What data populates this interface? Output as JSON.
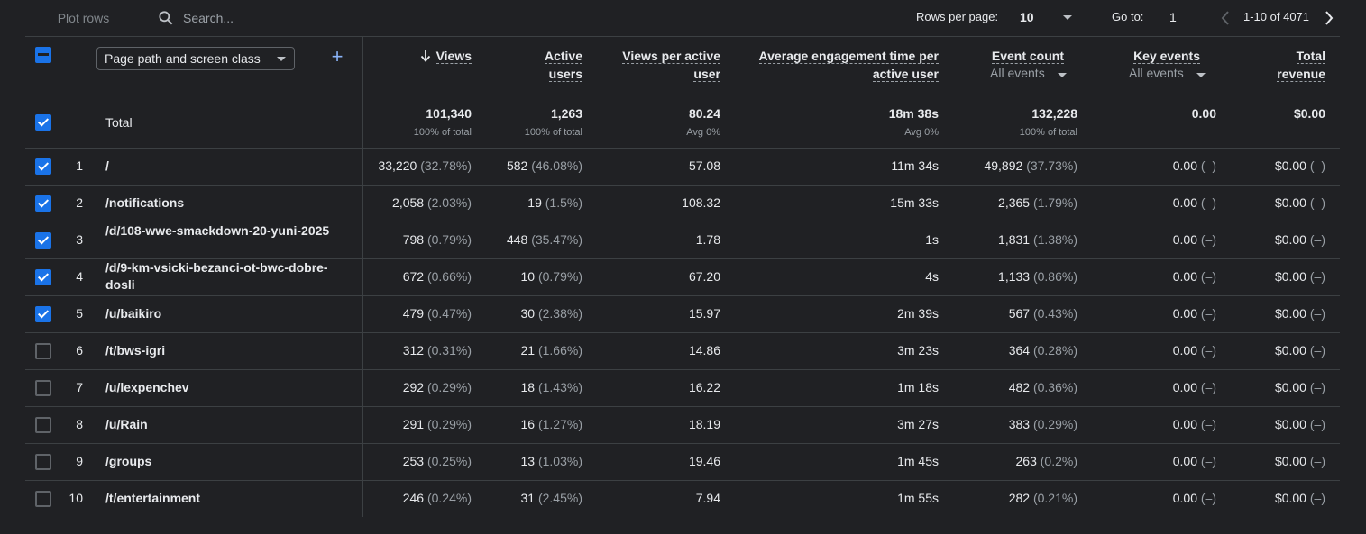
{
  "toolbar": {
    "plot_rows": "Plot rows",
    "search_placeholder": "Search...",
    "rows_per_page_label": "Rows per page:",
    "rows_per_page_value": "10",
    "goto_label": "Go to:",
    "goto_value": "1",
    "range": "1-10 of 4071"
  },
  "dimension": "Page path and screen class",
  "columns": {
    "views": "Views",
    "active_users_1": "Active",
    "active_users_2": "users",
    "vpu_1": "Views per active",
    "vpu_2": "user",
    "aet_1": "Average engagement time per",
    "aet_2": "active user",
    "events": "Event count",
    "events_sub": "All events",
    "key": "Key events",
    "key_sub": "All events",
    "rev_1": "Total",
    "rev_2": "revenue"
  },
  "totals": {
    "label": "Total",
    "views": "101,340",
    "views_sub": "100% of total",
    "users": "1,263",
    "users_sub": "100% of total",
    "vpu": "80.24",
    "vpu_sub": "Avg 0%",
    "aet": "18m 38s",
    "aet_sub": "Avg 0%",
    "events": "132,228",
    "events_sub": "100% of total",
    "key": "0.00",
    "rev": "$0.00"
  },
  "rows": [
    {
      "n": "1",
      "path": "/",
      "checked": true,
      "views": "33,220",
      "views_pct": "(32.78%)",
      "users": "582",
      "users_pct": "(46.08%)",
      "vpu": "57.08",
      "aet": "11m 34s",
      "events": "49,892",
      "events_pct": "(37.73%)",
      "key": "0.00",
      "key_pct": "(–)",
      "rev": "$0.00",
      "rev_pct": "(–)"
    },
    {
      "n": "2",
      "path": "/notifications",
      "checked": true,
      "views": "2,058",
      "views_pct": "(2.03%)",
      "users": "19",
      "users_pct": "(1.5%)",
      "vpu": "108.32",
      "aet": "15m 33s",
      "events": "2,365",
      "events_pct": "(1.79%)",
      "key": "0.00",
      "key_pct": "(–)",
      "rev": "$0.00",
      "rev_pct": "(–)"
    },
    {
      "n": "3",
      "path": "/d/108-wwe-smackdown-20-yuni-2025",
      "checked": true,
      "views": "798",
      "views_pct": "(0.79%)",
      "users": "448",
      "users_pct": "(35.47%)",
      "vpu": "1.78",
      "aet": "1s",
      "events": "1,831",
      "events_pct": "(1.38%)",
      "key": "0.00",
      "key_pct": "(–)",
      "rev": "$0.00",
      "rev_pct": "(–)"
    },
    {
      "n": "4",
      "path": "/d/9-km-vsicki-bezanci-ot-bwc-dobre-dosli",
      "checked": true,
      "views": "672",
      "views_pct": "(0.66%)",
      "users": "10",
      "users_pct": "(0.79%)",
      "vpu": "67.20",
      "aet": "4s",
      "events": "1,133",
      "events_pct": "(0.86%)",
      "key": "0.00",
      "key_pct": "(–)",
      "rev": "$0.00",
      "rev_pct": "(–)"
    },
    {
      "n": "5",
      "path": "/u/baikiro",
      "checked": true,
      "views": "479",
      "views_pct": "(0.47%)",
      "users": "30",
      "users_pct": "(2.38%)",
      "vpu": "15.97",
      "aet": "2m 39s",
      "events": "567",
      "events_pct": "(0.43%)",
      "key": "0.00",
      "key_pct": "(–)",
      "rev": "$0.00",
      "rev_pct": "(–)"
    },
    {
      "n": "6",
      "path": "/t/bws-igri",
      "checked": false,
      "views": "312",
      "views_pct": "(0.31%)",
      "users": "21",
      "users_pct": "(1.66%)",
      "vpu": "14.86",
      "aet": "3m 23s",
      "events": "364",
      "events_pct": "(0.28%)",
      "key": "0.00",
      "key_pct": "(–)",
      "rev": "$0.00",
      "rev_pct": "(–)"
    },
    {
      "n": "7",
      "path": "/u/lexpenchev",
      "checked": false,
      "views": "292",
      "views_pct": "(0.29%)",
      "users": "18",
      "users_pct": "(1.43%)",
      "vpu": "16.22",
      "aet": "1m 18s",
      "events": "482",
      "events_pct": "(0.36%)",
      "key": "0.00",
      "key_pct": "(–)",
      "rev": "$0.00",
      "rev_pct": "(–)"
    },
    {
      "n": "8",
      "path": "/u/Rain",
      "checked": false,
      "views": "291",
      "views_pct": "(0.29%)",
      "users": "16",
      "users_pct": "(1.27%)",
      "vpu": "18.19",
      "aet": "3m 27s",
      "events": "383",
      "events_pct": "(0.29%)",
      "key": "0.00",
      "key_pct": "(–)",
      "rev": "$0.00",
      "rev_pct": "(–)"
    },
    {
      "n": "9",
      "path": "/groups",
      "checked": false,
      "views": "253",
      "views_pct": "(0.25%)",
      "users": "13",
      "users_pct": "(1.03%)",
      "vpu": "19.46",
      "aet": "1m 45s",
      "events": "263",
      "events_pct": "(0.2%)",
      "key": "0.00",
      "key_pct": "(–)",
      "rev": "$0.00",
      "rev_pct": "(–)"
    },
    {
      "n": "10",
      "path": "/t/entertainment",
      "checked": false,
      "views": "246",
      "views_pct": "(0.24%)",
      "users": "31",
      "users_pct": "(2.45%)",
      "vpu": "7.94",
      "aet": "1m 55s",
      "events": "282",
      "events_pct": "(0.21%)",
      "key": "0.00",
      "key_pct": "(–)",
      "rev": "$0.00",
      "rev_pct": "(–)"
    }
  ]
}
